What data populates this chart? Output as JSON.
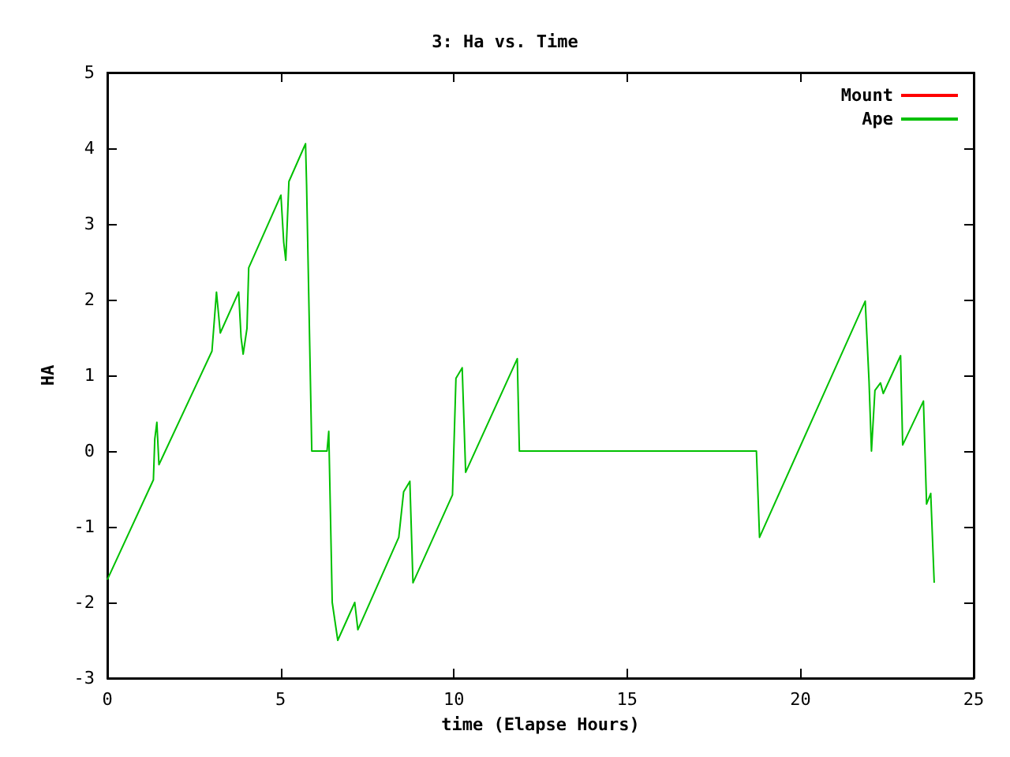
{
  "chart_data": {
    "type": "line",
    "title": "3: Ha vs. Time",
    "xlabel": "time (Elapse Hours)",
    "ylabel": "HA",
    "x": [
      0,
      1.33,
      1.37,
      1.43,
      1.49,
      3.02,
      3.15,
      3.26,
      3.79,
      3.86,
      3.92,
      4.03,
      4.08,
      5.01,
      5.09,
      5.15,
      5.24,
      5.72,
      5.75,
      5.9,
      6.34,
      6.39,
      6.49,
      6.65,
      7.14,
      7.23,
      8.41,
      8.55,
      8.73,
      8.82,
      9.96,
      10.06,
      10.24,
      10.34,
      11.83,
      11.89,
      18.73,
      18.82,
      21.87,
      21.98,
      22.05,
      22.15,
      22.31,
      22.39,
      22.89,
      22.95,
      23.55,
      23.64,
      23.76,
      23.86
    ],
    "series": [
      {
        "name": "Mount",
        "color": "#ff0000",
        "values": [
          null,
          null,
          null,
          null,
          null,
          null,
          null,
          null,
          null,
          null,
          null,
          null,
          null,
          null,
          null,
          null,
          null,
          null,
          null,
          null,
          null,
          null,
          null,
          null,
          null,
          null,
          null,
          null,
          null,
          null,
          null,
          null,
          null,
          null,
          null,
          null,
          null,
          null,
          null,
          null,
          null,
          null,
          null,
          null,
          null,
          null,
          null,
          null,
          null,
          null
        ]
      },
      {
        "name": "Ape",
        "color": "#00c000",
        "values": [
          -1.7,
          -0.38,
          0.16,
          0.38,
          -0.18,
          1.32,
          2.1,
          1.56,
          2.1,
          1.5,
          1.28,
          1.62,
          2.42,
          3.38,
          2.76,
          2.52,
          3.56,
          4.06,
          3.52,
          0,
          0,
          0.26,
          -2,
          -2.5,
          -2,
          -2.36,
          -1.14,
          -0.54,
          -0.4,
          -1.74,
          -0.58,
          0.96,
          1.1,
          -0.28,
          1.22,
          0,
          0,
          -1.14,
          1.98,
          0.92,
          0,
          0.8,
          0.9,
          0.76,
          1.26,
          0.08,
          0.66,
          -0.7,
          -0.56,
          -1.74
        ]
      }
    ],
    "xlim": [
      0,
      25
    ],
    "xticks": [
      0,
      5,
      10,
      15,
      20,
      25
    ],
    "ylim": [
      -3,
      5
    ],
    "yticks": [
      -3,
      -2,
      -1,
      0,
      1,
      2,
      3,
      4,
      5
    ],
    "legend": "top right",
    "grid": false,
    "marker": "none",
    "line_style": "solid"
  }
}
